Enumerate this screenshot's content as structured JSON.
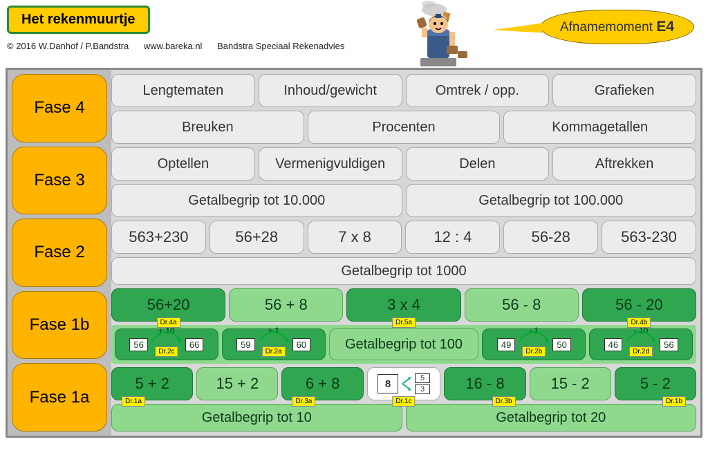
{
  "header": {
    "title": "Het rekenmuurtje",
    "copyright": "© 2016 W.Danhof / P.Bandstra",
    "url": "www.bareka.nl",
    "org": "Bandstra Speciaal Rekenadvies",
    "bubble_prefix": "Afnamemoment ",
    "bubble_code": "E4"
  },
  "colors": {
    "phase_bg": "#ffb400",
    "brick_plain": "#ececec",
    "brick_green_dark": "#2fa64f",
    "brick_green_light": "#8fd98f",
    "badge_bg": "#fff200",
    "wall_bg": "#d8d8d8"
  },
  "phases": {
    "p4": "Fase 4",
    "p3": "Fase 3",
    "p2": "Fase 2",
    "p1b": "Fase 1b",
    "p1a": "Fase 1a"
  },
  "fase4": {
    "r1": [
      "Lengtematen",
      "Inhoud/gewicht",
      "Omtrek / opp.",
      "Grafieken"
    ],
    "r2": [
      "Breuken",
      "Procenten",
      "Kommagetallen"
    ]
  },
  "fase3": {
    "r1": [
      "Optellen",
      "Vermenigvuldigen",
      "Delen",
      "Aftrekken"
    ],
    "r2": [
      "Getalbegrip tot 10.000",
      "Getalbegrip tot 100.000"
    ]
  },
  "fase2": {
    "r1": [
      "563+230",
      "56+28",
      "7 x 8",
      "12 : 4",
      "56-28",
      "563-230"
    ],
    "r2": "Getalbegrip tot 1000"
  },
  "fase1b": {
    "r1": [
      {
        "text": "56+20",
        "cls": "g-dk",
        "badge": "Dr.4a",
        "bp": "b-bc"
      },
      {
        "text": "56 + 8",
        "cls": "g-lt"
      },
      {
        "text": "3 x 4",
        "cls": "g-dk",
        "badge": "Dr.5a",
        "bp": "b-bc"
      },
      {
        "text": "56 - 8",
        "cls": "g-lt"
      },
      {
        "text": "56 - 20",
        "cls": "g-dk",
        "badge": "Dr.4b",
        "bp": "b-bc"
      }
    ],
    "jumps": [
      {
        "a": "56",
        "op": "+ 10",
        "b": "66",
        "badge": "Dr.2c"
      },
      {
        "a": "59",
        "op": "+ 1",
        "b": "60",
        "badge": "Dr.2a"
      },
      {
        "a": "49",
        "op": "- 1",
        "b": "50",
        "badge": "Dr.2b"
      },
      {
        "a": "46",
        "op": "- 10",
        "b": "56",
        "badge": "Dr.2d"
      }
    ],
    "mid": "Getalbegrip tot 100"
  },
  "fase1a": {
    "r1": [
      {
        "text": "5 + 2",
        "cls": "g-dk",
        "badge": "Dr.1a",
        "bp": "b-bl"
      },
      {
        "text": "15 + 2",
        "cls": "g-lt"
      },
      {
        "text": "6 + 8",
        "cls": "g-dk",
        "badge": "Dr.3a",
        "bp": "b-bl"
      },
      {
        "type": "split",
        "big": "8",
        "t": "5",
        "b": "3",
        "badge": "Dr.1c",
        "bp": "b-bc"
      },
      {
        "text": "16 - 8",
        "cls": "g-dk",
        "badge": "Dr.3b",
        "bp": "b-br"
      },
      {
        "text": "15 - 2",
        "cls": "g-lt"
      },
      {
        "text": "5 - 2",
        "cls": "g-dk",
        "badge": "Dr.1b",
        "bp": "b-br"
      }
    ],
    "r2": [
      "Getalbegrip tot 10",
      "Getalbegrip tot 20"
    ]
  }
}
